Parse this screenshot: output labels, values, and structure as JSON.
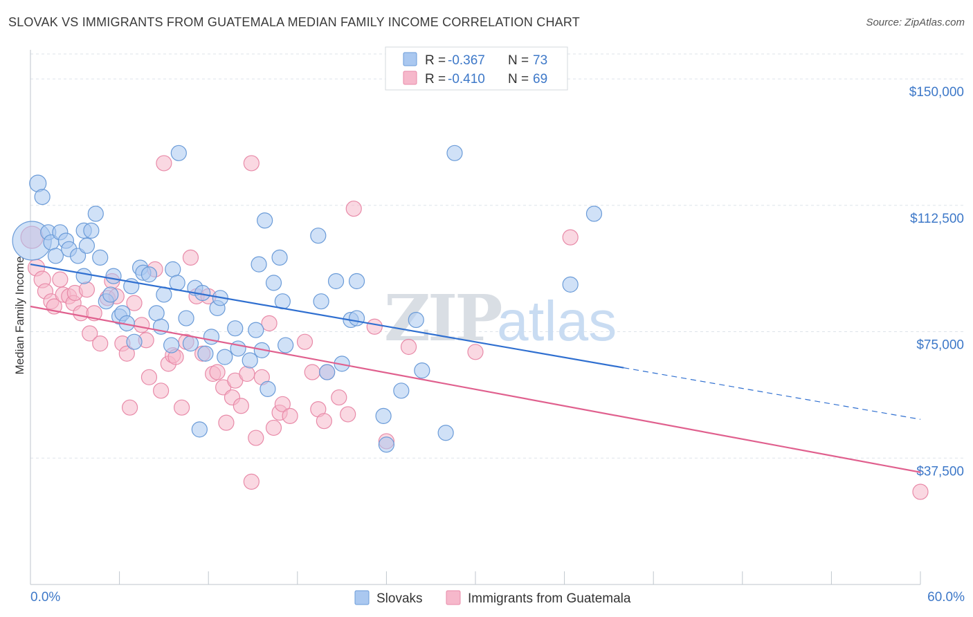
{
  "header": {
    "title": "SLOVAK VS IMMIGRANTS FROM GUATEMALA MEDIAN FAMILY INCOME CORRELATION CHART",
    "source": "Source: ZipAtlas.com"
  },
  "colors": {
    "blue_fill": "#aac8f0",
    "blue_stroke": "#6a9bd8",
    "blue_line": "#2f6fd0",
    "pink_fill": "#f6b8cb",
    "pink_stroke": "#e88aa8",
    "pink_line": "#e0608e",
    "grid": "#dde3ea",
    "axis_text": "#3d78c8",
    "watermark": "#d8dde3"
  },
  "watermark": {
    "left": "ZIP",
    "right": "atlas"
  },
  "chart_data": {
    "type": "scatter",
    "title": "SLOVAK VS IMMIGRANTS FROM GUATEMALA MEDIAN FAMILY INCOME CORRELATION CHART",
    "xlabel": "",
    "ylabel": "Median Family Income",
    "xlim": [
      0,
      60
    ],
    "ylim": [
      0,
      157000
    ],
    "x_tick_labels": [
      "0.0%",
      "60.0%"
    ],
    "y_ticks": [
      37500,
      75000,
      112500,
      150000
    ],
    "y_tick_labels": [
      "$37,500",
      "$75,000",
      "$112,500",
      "$150,000"
    ],
    "grid": "horizontal dashed",
    "legend_placement": "top-center",
    "legend": [
      {
        "r_label": "R = ",
        "r_value": "-0.367",
        "n_label": "N = ",
        "n_value": "73"
      },
      {
        "r_label": "R = ",
        "r_value": "-0.410",
        "n_label": "N = ",
        "n_value": "69"
      }
    ],
    "series": [
      {
        "name": "Slovaks",
        "color": "#aac8f0",
        "trend": {
          "x0": 0,
          "y0": 95000,
          "x1": 40,
          "y1": 64300,
          "dashed_to_x": 60,
          "dashed_to_y": 49000
        },
        "points": [
          [
            0.1,
            102000,
            28
          ],
          [
            0.5,
            119000,
            12
          ],
          [
            0.8,
            115000,
            11
          ],
          [
            1.2,
            104500,
            11
          ],
          [
            1.4,
            101500,
            11
          ],
          [
            1.7,
            97500,
            11
          ],
          [
            2.0,
            104500,
            11
          ],
          [
            2.4,
            102000,
            11
          ],
          [
            2.6,
            99500,
            11
          ],
          [
            3.2,
            97500,
            11
          ],
          [
            3.6,
            105000,
            11
          ],
          [
            3.6,
            91500,
            11
          ],
          [
            3.8,
            100500,
            11
          ],
          [
            4.1,
            105000,
            11
          ],
          [
            4.4,
            110000,
            11
          ],
          [
            4.7,
            97000,
            11
          ],
          [
            5.1,
            84000,
            11
          ],
          [
            5.4,
            86000,
            11
          ],
          [
            5.6,
            91500,
            11
          ],
          [
            6.0,
            79500,
            11
          ],
          [
            6.2,
            80500,
            11
          ],
          [
            6.5,
            77500,
            11
          ],
          [
            6.8,
            88500,
            11
          ],
          [
            7.0,
            72000,
            11
          ],
          [
            7.4,
            94000,
            11
          ],
          [
            7.6,
            92500,
            11
          ],
          [
            8.0,
            92000,
            11
          ],
          [
            8.5,
            80500,
            11
          ],
          [
            8.8,
            76500,
            11
          ],
          [
            9.0,
            86000,
            11
          ],
          [
            9.5,
            71000,
            11
          ],
          [
            9.6,
            93500,
            11
          ],
          [
            9.9,
            89500,
            11
          ],
          [
            10.0,
            128000,
            11
          ],
          [
            10.5,
            79000,
            11
          ],
          [
            10.8,
            71500,
            11
          ],
          [
            11.1,
            88000,
            11
          ],
          [
            11.4,
            46000,
            11
          ],
          [
            11.6,
            86500,
            11
          ],
          [
            11.8,
            68500,
            11
          ],
          [
            12.2,
            73500,
            11
          ],
          [
            12.6,
            82000,
            11
          ],
          [
            12.8,
            85000,
            11
          ],
          [
            13.1,
            67500,
            11
          ],
          [
            13.8,
            76000,
            11
          ],
          [
            14.0,
            70000,
            11
          ],
          [
            14.8,
            66500,
            11
          ],
          [
            15.2,
            75500,
            11
          ],
          [
            15.4,
            95000,
            11
          ],
          [
            15.6,
            69500,
            11
          ],
          [
            15.8,
            108000,
            11
          ],
          [
            16.0,
            58000,
            11
          ],
          [
            16.4,
            89500,
            11
          ],
          [
            16.8,
            97000,
            11
          ],
          [
            17.0,
            84000,
            11
          ],
          [
            17.2,
            71000,
            11
          ],
          [
            19.4,
            103500,
            11
          ],
          [
            19.6,
            84000,
            11
          ],
          [
            20.6,
            90000,
            11
          ],
          [
            20.0,
            63000,
            11
          ],
          [
            21.0,
            65500,
            11
          ],
          [
            21.6,
            78500,
            11
          ],
          [
            22.0,
            90000,
            11
          ],
          [
            22.0,
            79000,
            11
          ],
          [
            23.8,
            50000,
            11
          ],
          [
            24.0,
            41500,
            11
          ],
          [
            25.0,
            57500,
            11
          ],
          [
            26.0,
            78500,
            11
          ],
          [
            26.4,
            63500,
            11
          ],
          [
            28.0,
            45000,
            11
          ],
          [
            28.6,
            128000,
            11
          ],
          [
            36.4,
            89000,
            11
          ],
          [
            38.0,
            110000,
            11
          ]
        ]
      },
      {
        "name": "Immigrants from Guatemala",
        "color": "#f6b8cb",
        "trend": {
          "x0": 0,
          "y0": 82500,
          "x1": 60,
          "y1": 33300
        },
        "points": [
          [
            0.1,
            103000,
            16
          ],
          [
            0.4,
            94000,
            12
          ],
          [
            0.8,
            90500,
            12
          ],
          [
            1.0,
            87000,
            11
          ],
          [
            1.4,
            84000,
            11
          ],
          [
            1.6,
            82500,
            11
          ],
          [
            2.0,
            90500,
            11
          ],
          [
            2.2,
            86000,
            11
          ],
          [
            2.6,
            85500,
            11
          ],
          [
            2.9,
            83500,
            11
          ],
          [
            3.0,
            86500,
            11
          ],
          [
            3.4,
            80500,
            11
          ],
          [
            3.8,
            87500,
            11
          ],
          [
            4.0,
            74500,
            11
          ],
          [
            4.3,
            80500,
            11
          ],
          [
            4.7,
            71500,
            11
          ],
          [
            5.2,
            85000,
            11
          ],
          [
            5.5,
            90000,
            11
          ],
          [
            5.8,
            85500,
            11
          ],
          [
            6.2,
            71500,
            11
          ],
          [
            6.5,
            68500,
            11
          ],
          [
            6.7,
            52500,
            11
          ],
          [
            7.0,
            83500,
            11
          ],
          [
            7.5,
            77000,
            11
          ],
          [
            7.8,
            72500,
            11
          ],
          [
            8.0,
            61500,
            11
          ],
          [
            8.4,
            93500,
            11
          ],
          [
            8.8,
            57500,
            11
          ],
          [
            9.0,
            125000,
            11
          ],
          [
            9.3,
            65500,
            11
          ],
          [
            9.6,
            68000,
            11
          ],
          [
            9.8,
            67500,
            11
          ],
          [
            10.2,
            52500,
            11
          ],
          [
            10.5,
            72000,
            11
          ],
          [
            10.8,
            97000,
            11
          ],
          [
            11.2,
            85500,
            11
          ],
          [
            11.6,
            68500,
            11
          ],
          [
            12.0,
            85500,
            11
          ],
          [
            12.3,
            62500,
            11
          ],
          [
            12.6,
            63000,
            11
          ],
          [
            13.0,
            58500,
            11
          ],
          [
            13.2,
            48000,
            11
          ],
          [
            13.6,
            55500,
            11
          ],
          [
            13.8,
            60500,
            11
          ],
          [
            14.2,
            53000,
            11
          ],
          [
            14.6,
            62500,
            11
          ],
          [
            14.9,
            30500,
            11
          ],
          [
            14.9,
            125000,
            11
          ],
          [
            15.2,
            43500,
            11
          ],
          [
            15.6,
            61500,
            11
          ],
          [
            16.1,
            77500,
            11
          ],
          [
            16.4,
            46500,
            11
          ],
          [
            16.8,
            51000,
            11
          ],
          [
            17.0,
            53500,
            11
          ],
          [
            17.5,
            50000,
            11
          ],
          [
            18.5,
            72000,
            11
          ],
          [
            19.0,
            63000,
            11
          ],
          [
            19.4,
            52000,
            11
          ],
          [
            19.8,
            48500,
            11
          ],
          [
            20.0,
            63000,
            11
          ],
          [
            20.8,
            55500,
            11
          ],
          [
            21.4,
            50500,
            11
          ],
          [
            21.8,
            111500,
            11
          ],
          [
            23.2,
            76500,
            11
          ],
          [
            24.0,
            42500,
            11
          ],
          [
            25.5,
            70500,
            11
          ],
          [
            30.0,
            69000,
            11
          ],
          [
            36.4,
            103000,
            11
          ],
          [
            60.0,
            27500,
            11
          ]
        ]
      }
    ]
  }
}
